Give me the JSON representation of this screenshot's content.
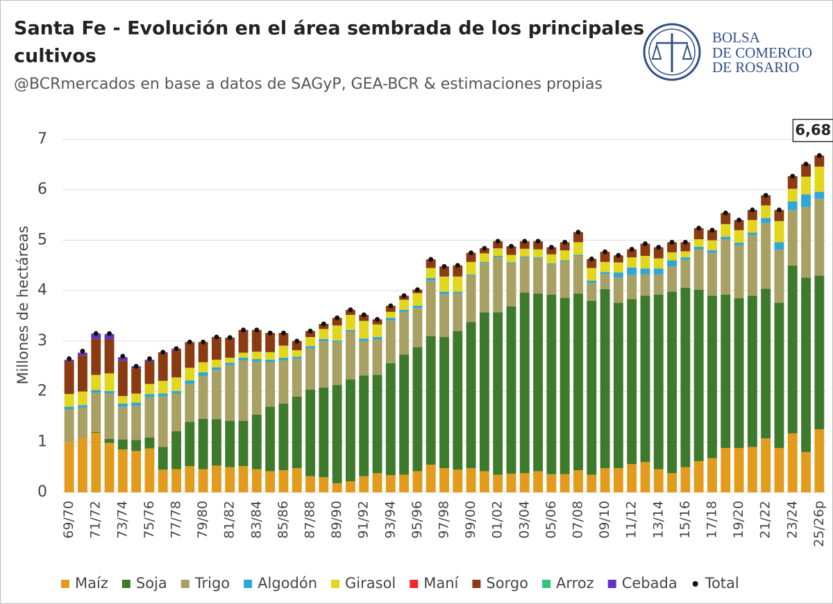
{
  "chart_data": {
    "type": "stacked_bar",
    "title": "Santa Fe - Evolución en el área sembrada de los principales",
    "title_line2": "cultivos",
    "subtitle": "@BCRmercados en base a datos de SAGyP, GEA-BCR & estimaciones propias",
    "logo": [
      "BOLSA",
      "DE COMERCIO",
      "DE ROSARIO"
    ],
    "y_label": "Millones de hectáreas",
    "ylim": [
      0,
      7
    ],
    "yticks": [
      0,
      1,
      2,
      3,
      4,
      5,
      6,
      7
    ],
    "grid": true,
    "legend": "bottom",
    "categories": [
      "69/70",
      null,
      "71/72",
      null,
      "73/74",
      null,
      "75/76",
      null,
      "77/78",
      null,
      "79/80",
      null,
      "81/82",
      null,
      "83/84",
      null,
      "85/86",
      null,
      "87/88",
      null,
      "89/90",
      null,
      "91/92",
      null,
      "93/94",
      null,
      "95/96",
      null,
      "97/98",
      null,
      "99/00",
      null,
      "01/02",
      null,
      "03/04",
      null,
      "05/06",
      null,
      "07/08",
      null,
      "09/10",
      null,
      "11/12",
      null,
      "13/14",
      null,
      "15/16",
      null,
      "17/18",
      null,
      "19/20",
      null,
      "21/22",
      null,
      "23/24",
      null,
      "25/26p"
    ],
    "series": [
      {
        "name": "Maíz",
        "color": "#e39b1e",
        "values": [
          1.0,
          1.08,
          1.18,
          0.98,
          0.85,
          0.82,
          0.87,
          0.45,
          0.46,
          0.52,
          0.46,
          0.53,
          0.5,
          0.52,
          0.46,
          0.42,
          0.44,
          0.48,
          0.32,
          0.3,
          0.18,
          0.22,
          0.32,
          0.38,
          0.34,
          0.35,
          0.42,
          0.55,
          0.48,
          0.45,
          0.48,
          0.42,
          0.35,
          0.37,
          0.38,
          0.42,
          0.36,
          0.36,
          0.44,
          0.35,
          0.48,
          0.48,
          0.56,
          0.6,
          0.46,
          0.38,
          0.5,
          0.62,
          0.68,
          0.88,
          0.88,
          0.9,
          1.07,
          0.88,
          1.17,
          0.8,
          1.25
        ]
      },
      {
        "name": "Soja",
        "color": "#3e7a2c",
        "values": [
          0,
          0,
          0.02,
          0.08,
          0.2,
          0.22,
          0.22,
          0.45,
          0.75,
          0.88,
          1.0,
          0.92,
          0.92,
          0.9,
          1.08,
          1.28,
          1.32,
          1.42,
          1.72,
          1.78,
          1.95,
          2.02,
          2.0,
          1.95,
          2.22,
          2.38,
          2.46,
          2.55,
          2.6,
          2.75,
          2.9,
          3.15,
          3.22,
          3.32,
          3.58,
          3.52,
          3.56,
          3.5,
          3.5,
          3.45,
          3.55,
          3.28,
          3.27,
          3.3,
          3.46,
          3.6,
          3.56,
          3.4,
          3.22,
          3.04,
          2.97,
          3.0,
          2.97,
          2.88,
          3.33,
          3.46,
          3.05
        ]
      },
      {
        "name": "Trigo",
        "color": "#a9a064",
        "values": [
          0.65,
          0.6,
          0.78,
          0.9,
          0.65,
          0.68,
          0.8,
          1.0,
          0.75,
          0.75,
          0.85,
          0.98,
          1.1,
          1.2,
          1.05,
          0.88,
          0.86,
          0.75,
          0.82,
          0.92,
          0.85,
          0.95,
          0.68,
          0.7,
          0.85,
          0.85,
          0.78,
          1.1,
          0.85,
          0.75,
          0.92,
          0.98,
          1.1,
          0.85,
          0.7,
          0.7,
          0.6,
          0.72,
          0.75,
          0.35,
          0.3,
          0.5,
          0.48,
          0.42,
          0.4,
          0.5,
          0.55,
          0.8,
          0.85,
          1.1,
          1.05,
          1.2,
          1.3,
          1.05,
          1.1,
          1.4,
          1.52
        ]
      },
      {
        "name": "Algodón",
        "color": "#2fa7d6",
        "values": [
          0.05,
          0.05,
          0.05,
          0.05,
          0.06,
          0.06,
          0.06,
          0.06,
          0.05,
          0.07,
          0.07,
          0.05,
          0.05,
          0.05,
          0.05,
          0.05,
          0.05,
          0.04,
          0.04,
          0.04,
          0.03,
          0.03,
          0.05,
          0.05,
          0.05,
          0.04,
          0.04,
          0.05,
          0.05,
          0.03,
          0.02,
          0.02,
          0.02,
          0.02,
          0.02,
          0.02,
          0.02,
          0.02,
          0.02,
          0.05,
          0.04,
          0.1,
          0.15,
          0.12,
          0.12,
          0.12,
          0.05,
          0.05,
          0.05,
          0.05,
          0.05,
          0.05,
          0.1,
          0.15,
          0.17,
          0.25,
          0.14
        ]
      },
      {
        "name": "Girasol",
        "color": "#e2d71c",
        "values": [
          0.25,
          0.27,
          0.3,
          0.35,
          0.15,
          0.18,
          0.2,
          0.25,
          0.27,
          0.25,
          0.2,
          0.15,
          0.1,
          0.1,
          0.15,
          0.15,
          0.24,
          0.13,
          0.18,
          0.2,
          0.3,
          0.3,
          0.35,
          0.25,
          0.12,
          0.2,
          0.25,
          0.2,
          0.3,
          0.3,
          0.25,
          0.17,
          0.15,
          0.15,
          0.15,
          0.16,
          0.18,
          0.2,
          0.25,
          0.25,
          0.2,
          0.2,
          0.2,
          0.25,
          0.2,
          0.16,
          0.12,
          0.15,
          0.2,
          0.25,
          0.25,
          0.25,
          0.25,
          0.42,
          0.25,
          0.35,
          0.5
        ]
      },
      {
        "name": "Maní",
        "color": "#f02a2a",
        "values": [
          0,
          0,
          0,
          0,
          0,
          0,
          0,
          0,
          0,
          0,
          0,
          0,
          0,
          0,
          0,
          0,
          0,
          0,
          0,
          0,
          0,
          0,
          0,
          0,
          0,
          0,
          0,
          0,
          0,
          0,
          0,
          0,
          0,
          0,
          0,
          0,
          0,
          0,
          0,
          0,
          0,
          0,
          0,
          0,
          0,
          0,
          0,
          0,
          0,
          0,
          0,
          0,
          0,
          0,
          0,
          0,
          0
        ]
      },
      {
        "name": "Sorgo",
        "color": "#8b3b12",
        "values": [
          0.65,
          0.72,
          0.72,
          0.68,
          0.7,
          0.5,
          0.45,
          0.55,
          0.55,
          0.5,
          0.4,
          0.45,
          0.4,
          0.45,
          0.43,
          0.38,
          0.25,
          0.18,
          0.12,
          0.1,
          0.15,
          0.1,
          0.12,
          0.1,
          0.12,
          0.08,
          0.07,
          0.17,
          0.2,
          0.22,
          0.18,
          0.1,
          0.14,
          0.17,
          0.15,
          0.16,
          0.14,
          0.16,
          0.2,
          0.18,
          0.2,
          0.14,
          0.16,
          0.24,
          0.22,
          0.2,
          0.18,
          0.22,
          0.2,
          0.22,
          0.2,
          0.2,
          0.2,
          0.22,
          0.25,
          0.25,
          0.22
        ]
      },
      {
        "name": "Arroz",
        "color": "#33c27a",
        "values": [
          0,
          0,
          0,
          0,
          0,
          0,
          0,
          0,
          0,
          0,
          0,
          0,
          0,
          0,
          0,
          0,
          0,
          0,
          0,
          0,
          0,
          0,
          0,
          0,
          0,
          0,
          0,
          0,
          0,
          0,
          0,
          0,
          0,
          0,
          0,
          0,
          0,
          0,
          0,
          0,
          0,
          0,
          0,
          0,
          0,
          0,
          0,
          0,
          0,
          0,
          0,
          0,
          0,
          0,
          0,
          0,
          0
        ]
      },
      {
        "name": "Cebada",
        "color": "#6332c2",
        "values": [
          0.03,
          0.05,
          0.1,
          0.1,
          0.07,
          0.04,
          0.03,
          0.02,
          0.02,
          0.01,
          0,
          0,
          0,
          0,
          0,
          0,
          0,
          0,
          0,
          0,
          0,
          0,
          0,
          0,
          0,
          0,
          0,
          0,
          0,
          0,
          0,
          0,
          0,
          0,
          0,
          0,
          0,
          0,
          0,
          0,
          0,
          0,
          0,
          0,
          0,
          0,
          0,
          0,
          0,
          0,
          0,
          0,
          0,
          0,
          0,
          0,
          0
        ]
      },
      {
        "name": "Total",
        "color": "#111111",
        "marker": "dot",
        "values": [
          2.65,
          2.8,
          3.15,
          3.15,
          2.7,
          2.5,
          2.65,
          2.78,
          2.85,
          2.98,
          2.98,
          3.08,
          3.07,
          3.22,
          3.22,
          3.16,
          3.16,
          3.0,
          3.2,
          3.34,
          3.46,
          3.62,
          3.52,
          3.43,
          3.7,
          3.9,
          4.02,
          4.62,
          4.48,
          4.5,
          4.75,
          4.84,
          4.98,
          4.88,
          4.98,
          4.98,
          4.86,
          4.96,
          5.16,
          4.63,
          4.77,
          4.7,
          4.82,
          4.93,
          4.86,
          4.96,
          4.96,
          5.24,
          5.2,
          5.54,
          5.4,
          5.6,
          5.89,
          5.6,
          6.27,
          6.51,
          6.68
        ],
        "value_labels": [
          null,
          null,
          null,
          null,
          null,
          null,
          null,
          null,
          null,
          null,
          null,
          null,
          null,
          null,
          null,
          null,
          null,
          null,
          null,
          null,
          null,
          null,
          null,
          null,
          null,
          null,
          null,
          null,
          null,
          null,
          null,
          null,
          null,
          null,
          null,
          null,
          null,
          null,
          null,
          null,
          null,
          null,
          null,
          null,
          null,
          null,
          null,
          null,
          null,
          null,
          null,
          null,
          null,
          null,
          null,
          null,
          "6,68"
        ]
      }
    ]
  }
}
